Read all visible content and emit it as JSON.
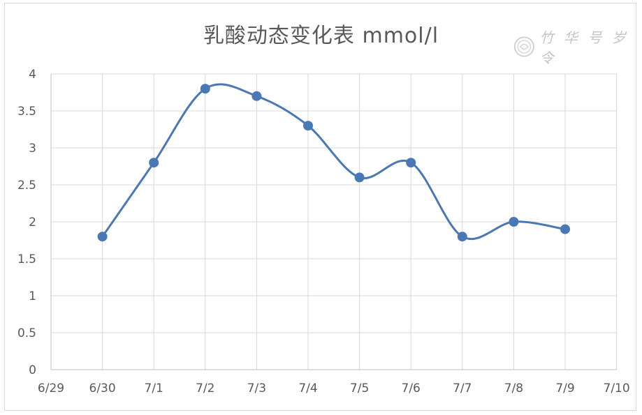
{
  "chart_data": {
    "type": "line",
    "title": "乳酸动态变化表 mmol/l",
    "x_ticks": [
      "6/29",
      "6/30",
      "7/1",
      "7/2",
      "7/3",
      "7/4",
      "7/5",
      "7/6",
      "7/7",
      "7/8",
      "7/9",
      "7/10"
    ],
    "categories": [
      "6/30",
      "7/1",
      "7/2",
      "7/3",
      "7/4",
      "7/5",
      "7/6",
      "7/7",
      "7/8",
      "7/9"
    ],
    "series": [
      {
        "values": [
          1.8,
          2.8,
          3.8,
          3.7,
          3.3,
          2.6,
          2.8,
          1.8,
          2.0,
          1.9
        ]
      }
    ],
    "ylim": [
      0,
      4
    ],
    "y_ticks": [
      "0",
      "0.5",
      "1",
      "1.5",
      "2",
      "2.5",
      "3",
      "3.5",
      "4"
    ],
    "grid": true,
    "smooth": true,
    "colors": {
      "line": "#4a78b6",
      "marker": "#4a78b6",
      "grid": "#d9d9d9",
      "axis_text": "#595959"
    }
  },
  "watermark": {
    "text": "竹 华 号 岁 令",
    "icon": "seal-icon"
  }
}
